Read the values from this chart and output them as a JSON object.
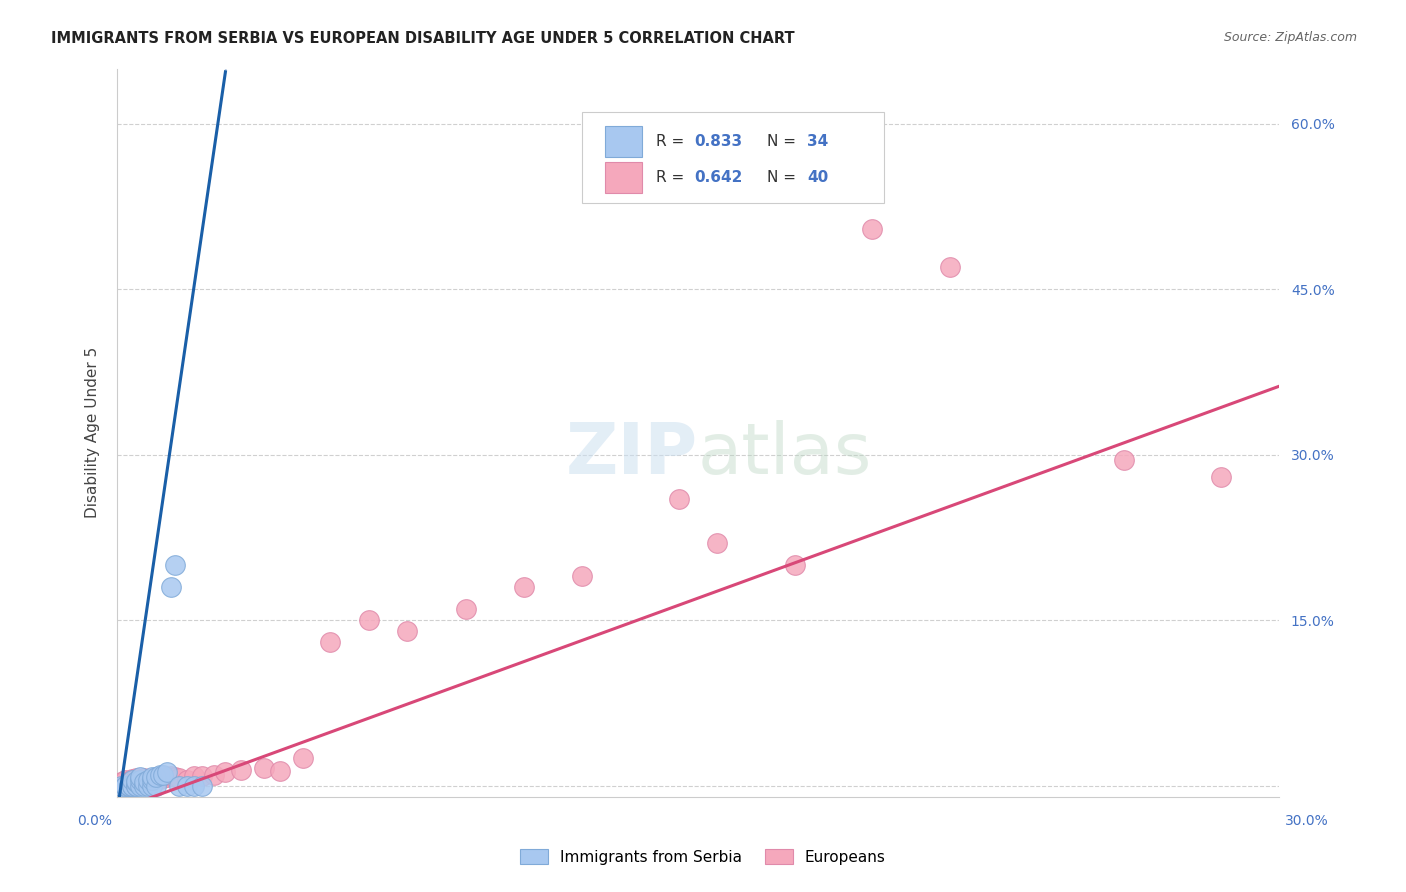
{
  "title": "IMMIGRANTS FROM SERBIA VS EUROPEAN DISABILITY AGE UNDER 5 CORRELATION CHART",
  "source": "Source: ZipAtlas.com",
  "ylabel": "Disability Age Under 5",
  "xlim": [
    0.0,
    0.3
  ],
  "ylim": [
    -0.01,
    0.65
  ],
  "y_ticks": [
    0.0,
    0.15,
    0.3,
    0.45,
    0.6
  ],
  "y_tick_labels": [
    "",
    "15.0%",
    "30.0%",
    "45.0%",
    "60.0%"
  ],
  "serbia_color": "#a8c8f0",
  "serbia_edge_color": "#80aad8",
  "europe_color": "#f5a8bc",
  "europe_edge_color": "#e08aaa",
  "serbia_line_color": "#1a5fa8",
  "europe_line_color": "#d84878",
  "serbia_dash_color": "#a0b8d8",
  "legend_r1": "0.833",
  "legend_n1": "34",
  "legend_r2": "0.642",
  "legend_n2": "40",
  "bottom_label1": "Immigrants from Serbia",
  "bottom_label2": "Europeans",
  "xleft_label": "0.0%",
  "xright_label": "30.0%",
  "serbia_points_x": [
    0.001,
    0.002,
    0.002,
    0.003,
    0.003,
    0.003,
    0.004,
    0.004,
    0.004,
    0.005,
    0.005,
    0.005,
    0.005,
    0.006,
    0.006,
    0.006,
    0.007,
    0.007,
    0.008,
    0.008,
    0.009,
    0.009,
    0.009,
    0.01,
    0.01,
    0.011,
    0.012,
    0.013,
    0.014,
    0.015,
    0.016,
    0.018,
    0.02,
    0.022
  ],
  "serbia_points_y": [
    0.0,
    0.0,
    0.0,
    0.0,
    0.0,
    0.0,
    0.0,
    0.0,
    0.005,
    0.0,
    0.0,
    0.003,
    0.004,
    0.0,
    0.005,
    0.008,
    0.0,
    0.003,
    0.0,
    0.005,
    0.0,
    0.005,
    0.008,
    0.0,
    0.008,
    0.01,
    0.01,
    0.012,
    0.18,
    0.2,
    0.0,
    0.0,
    0.0,
    0.0
  ],
  "europe_points_x": [
    0.001,
    0.002,
    0.003,
    0.004,
    0.005,
    0.005,
    0.006,
    0.007,
    0.007,
    0.008,
    0.009,
    0.01,
    0.011,
    0.012,
    0.013,
    0.014,
    0.015,
    0.016,
    0.018,
    0.02,
    0.022,
    0.025,
    0.028,
    0.032,
    0.038,
    0.042,
    0.048,
    0.055,
    0.065,
    0.075,
    0.09,
    0.105,
    0.12,
    0.145,
    0.155,
    0.175,
    0.195,
    0.215,
    0.26,
    0.285
  ],
  "europe_points_y": [
    0.003,
    0.005,
    0.004,
    0.006,
    0.004,
    0.007,
    0.005,
    0.004,
    0.007,
    0.005,
    0.006,
    0.007,
    0.006,
    0.007,
    0.008,
    0.009,
    0.008,
    0.007,
    0.005,
    0.009,
    0.009,
    0.01,
    0.012,
    0.014,
    0.016,
    0.013,
    0.025,
    0.13,
    0.15,
    0.14,
    0.16,
    0.18,
    0.19,
    0.26,
    0.22,
    0.2,
    0.505,
    0.47,
    0.295,
    0.28
  ],
  "serbia_reg_slope": 24.0,
  "serbia_reg_intercept": -0.025,
  "europe_reg_slope": 1.28,
  "europe_reg_intercept": -0.022
}
